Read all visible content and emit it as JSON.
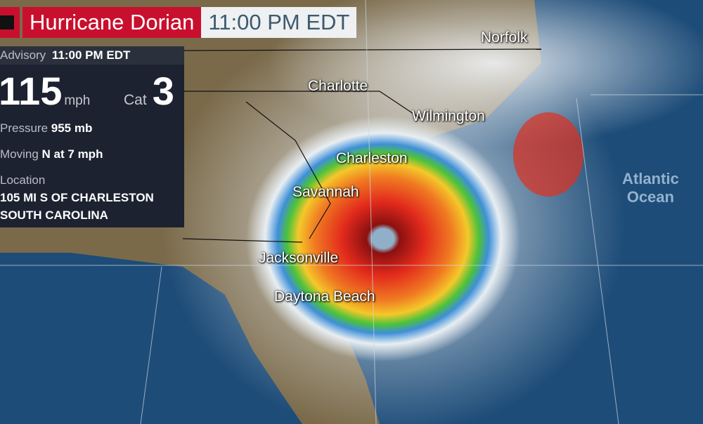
{
  "title": {
    "storm_name": "Hurricane Dorian",
    "time": "11:00 PM EDT"
  },
  "advisory": {
    "label": "Advisory",
    "time": "11:00 PM EDT",
    "wind_speed": "115",
    "wind_unit": "mph",
    "category_label": "Cat",
    "category": "3",
    "pressure_label": "Pressure",
    "pressure": "955 mb",
    "moving_label": "Moving",
    "moving": "N at 7 mph",
    "location_label": "Location",
    "location_line1": "105 MI S OF CHARLESTON",
    "location_line2": "SOUTH CAROLINA"
  },
  "map": {
    "cities": [
      "Norfolk",
      "Charlotte",
      "Wilmington",
      "Charleston",
      "Savannah",
      "Jacksonville",
      "Daytona Beach"
    ],
    "ocean_label_line1": "Atlantic",
    "ocean_label_line2": "Ocean",
    "colors": {
      "land": "#7a6a4a",
      "ocean": "#1d4c78",
      "accent": "#c8102e"
    }
  }
}
